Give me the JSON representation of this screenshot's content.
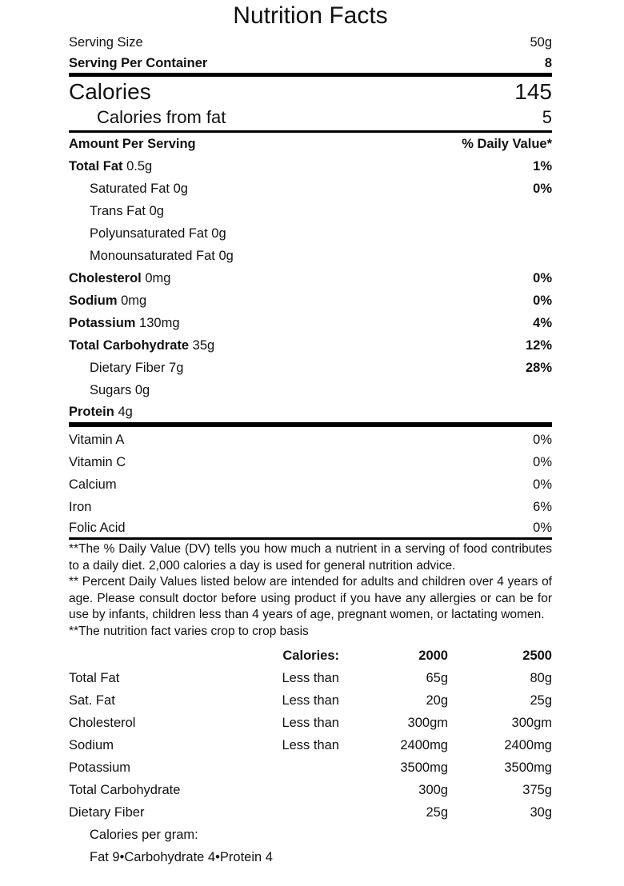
{
  "title": "Nutrition Facts",
  "serving": {
    "size_label": "Serving Size",
    "size_value": "50g",
    "per_container_label": "Serving Per Container",
    "per_container_value": "8"
  },
  "calories": {
    "label": "Calories",
    "value": "145",
    "from_fat_label": "Calories from fat",
    "from_fat_value": "5"
  },
  "header": {
    "amount": "Amount Per Serving",
    "dv": "% Daily Value*"
  },
  "nutrients": [
    {
      "name": "Total Fat",
      "amount": "0.5g",
      "dv": "1%"
    },
    {
      "name": "Saturated Fat",
      "amount": "0g",
      "dv": "0%"
    },
    {
      "name": "Trans Fat",
      "amount": "0g",
      "dv": ""
    },
    {
      "name": "Polyunsaturated Fat",
      "amount": "0g",
      "dv": ""
    },
    {
      "name": "Monounsaturated Fat",
      "amount": "0g",
      "dv": ""
    },
    {
      "name": "Cholesterol",
      "amount": "0mg",
      "dv": "0%"
    },
    {
      "name": "Sodium",
      "amount": "0mg",
      "dv": "0%"
    },
    {
      "name": "Potassium",
      "amount": "130mg",
      "dv": "4%"
    },
    {
      "name": "Total Carbohydrate",
      "amount": "35g",
      "dv": "12%"
    },
    {
      "name": "Dietary Fiber",
      "amount": "7g",
      "dv": "28%"
    },
    {
      "name": "Sugars",
      "amount": "0g",
      "dv": ""
    },
    {
      "name": "Protein",
      "amount": "4g",
      "dv": ""
    }
  ],
  "vitamins": [
    {
      "name": "Vitamin A",
      "dv": "0%"
    },
    {
      "name": "Vitamin C",
      "dv": "0%"
    },
    {
      "name": "Calcium",
      "dv": "0%"
    },
    {
      "name": "Iron",
      "dv": "6%"
    },
    {
      "name": "Folic Acid",
      "dv": "0%"
    }
  ],
  "footnotes": [
    "**The % Daily Value (DV) tells you how much a nutrient in a serving of food contributes to a daily diet. 2,000 calories a day is used for general nutrition advice.",
    "** Percent Daily Values listed below are intended for adults and children over 4 years of age. Please consult doctor before using product if you have any allergies or can be for use by infants, children less than 4 years of age, pregnant women, or lactating women.",
    "**The nutrition fact varies crop to crop basis"
  ],
  "dv_table": {
    "header": {
      "calories_label": "Calories:",
      "col1": "2000",
      "col2": "2500"
    },
    "rows": [
      {
        "name": "Total Fat",
        "qualifier": "Less than",
        "v1": "65g",
        "v2": "80g"
      },
      {
        "name": "Sat. Fat",
        "qualifier": "Less than",
        "v1": "20g",
        "v2": "25g"
      },
      {
        "name": "Cholesterol",
        "qualifier": "Less than",
        "v1": "300gm",
        "v2": "300gm"
      },
      {
        "name": "Sodium",
        "qualifier": "Less than",
        "v1": "2400mg",
        "v2": "2400mg"
      },
      {
        "name": "Potassium",
        "qualifier": "",
        "v1": "3500mg",
        "v2": "3500mg"
      },
      {
        "name": "Total Carbohydrate",
        "qualifier": "",
        "v1": "300g",
        "v2": "375g"
      },
      {
        "name": "Dietary Fiber",
        "qualifier": "",
        "v1": "25g",
        "v2": "30g"
      }
    ],
    "calories_per_gram_label": "Calories per gram:",
    "calories_per_gram_values": "Fat 9•Carbohydrate 4•Protein 4"
  }
}
